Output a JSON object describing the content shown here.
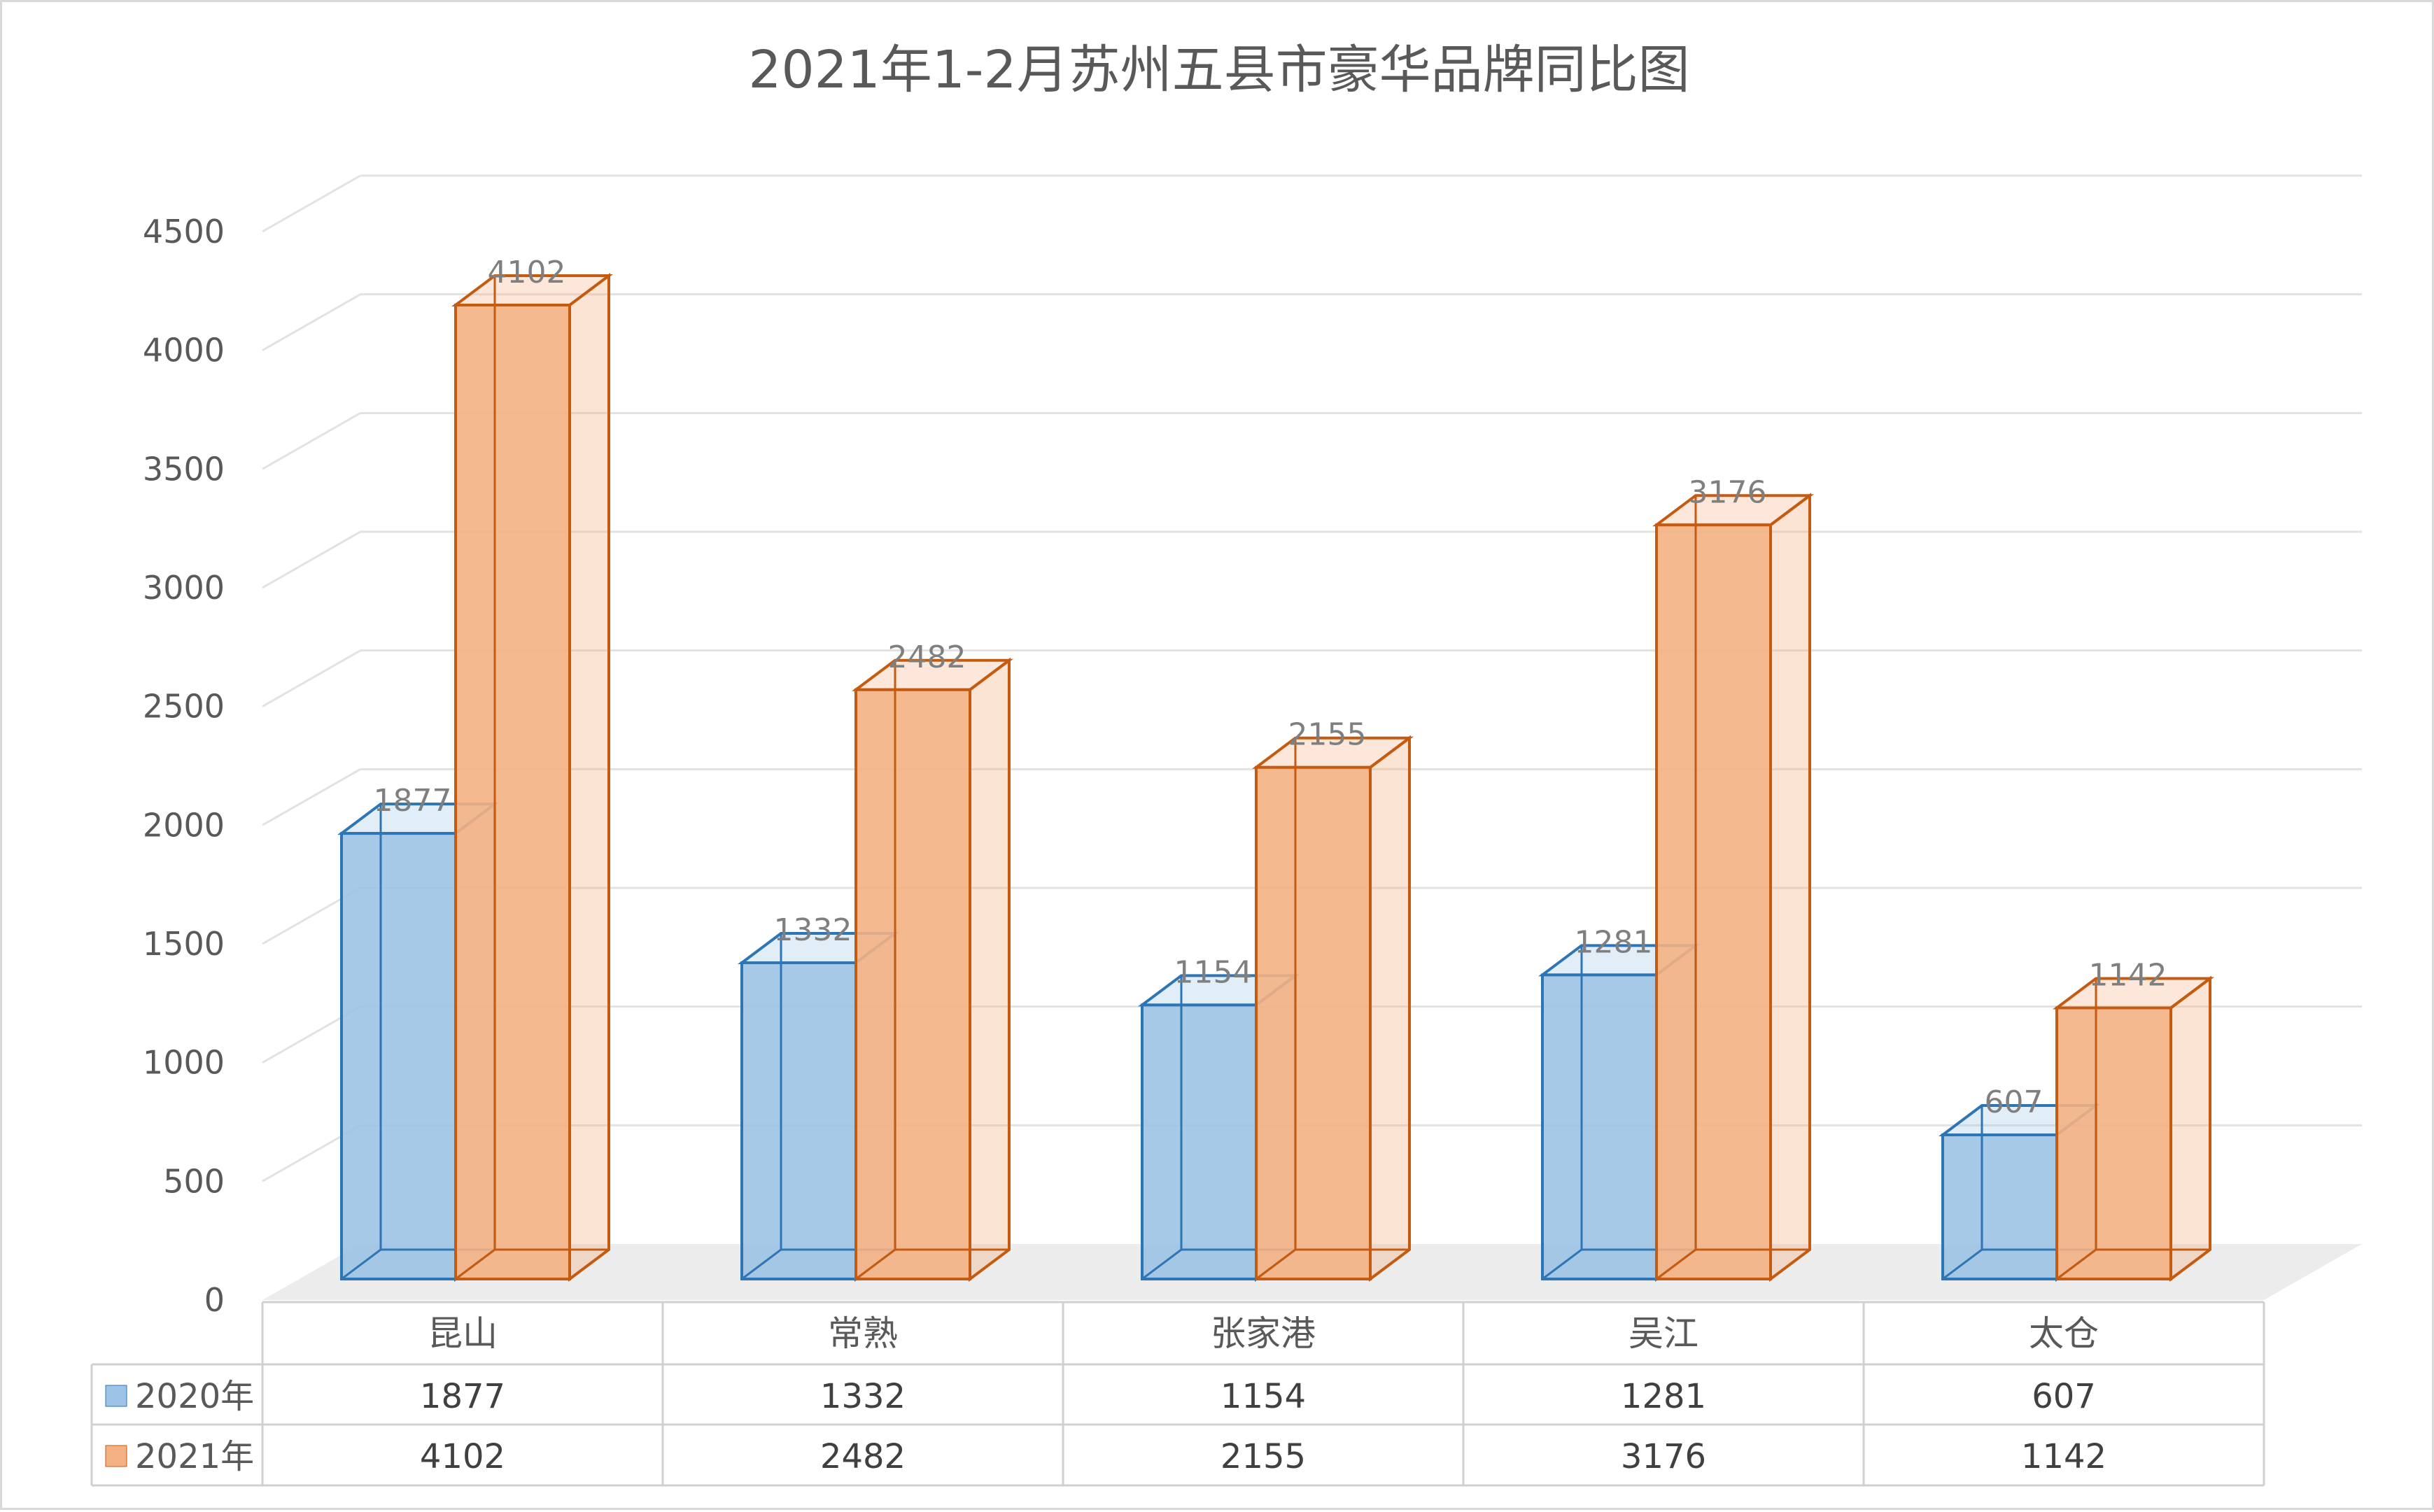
{
  "chart_data": {
    "type": "bar",
    "title": "2021年1-2月苏州五县市豪华品牌同比图",
    "categories": [
      "昆山",
      "常熟",
      "张家港",
      "吴江",
      "太仓"
    ],
    "series": [
      {
        "name": "2020年",
        "values": [
          1877,
          1332,
          1154,
          1281,
          607
        ],
        "color": "#9dc3e6",
        "stroke": "#2e75b6"
      },
      {
        "name": "2021年",
        "values": [
          4102,
          2482,
          2155,
          3176,
          1142
        ],
        "color": "#f4b183",
        "stroke": "#c55a11"
      }
    ],
    "ylim": [
      0,
      4500
    ],
    "yticks": [
      0,
      500,
      1000,
      1500,
      2000,
      2500,
      3000,
      3500,
      4000,
      4500
    ],
    "grid": true,
    "data_labels": true,
    "style": "3d-clustered-column",
    "legend": "data-table"
  }
}
